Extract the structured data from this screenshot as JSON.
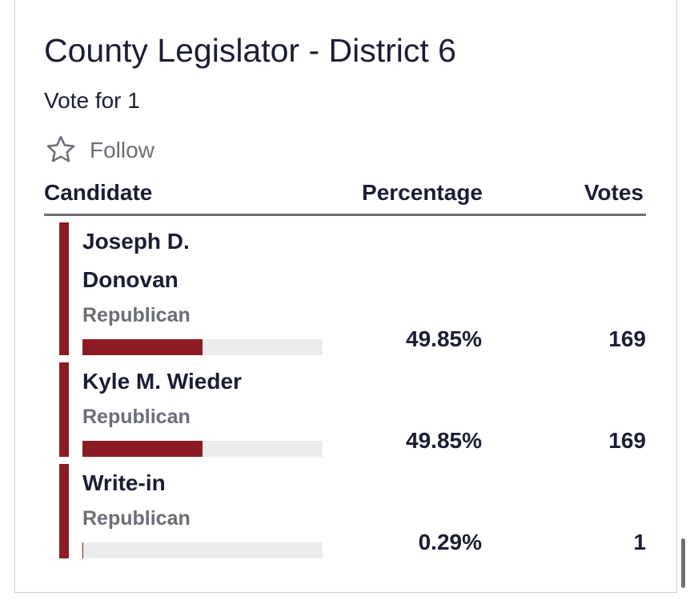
{
  "title": "County Legislator - District 6",
  "subtitle": "Vote for 1",
  "follow": "Follow",
  "table": {
    "headers": [
      "Candidate",
      "Percentage",
      "Votes"
    ],
    "rows": [
      {
        "name": "Joseph D. Donovan",
        "party": "Republican",
        "percentage": {
          "value": 49.85,
          "label": "49.85%"
        },
        "votes": 169
      },
      {
        "name": "Kyle M. Wieder",
        "party": "Republican",
        "percentage": {
          "value": 49.85,
          "label": "49.85%"
        },
        "votes": 169
      },
      {
        "name": "Write-in",
        "party": "Republican",
        "percentage": {
          "value": 0.29,
          "label": "0.29%"
        },
        "votes": 1
      }
    ]
  }
}
